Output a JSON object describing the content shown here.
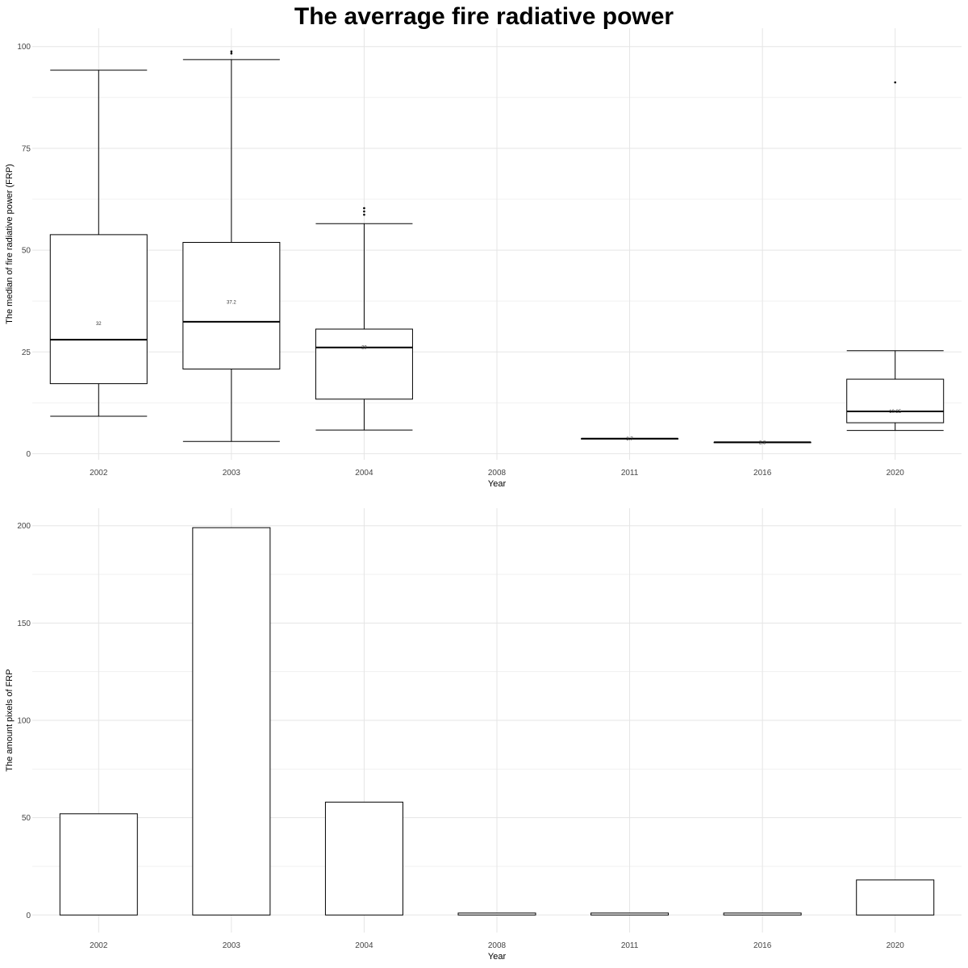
{
  "title": "The averrage fire radiative power",
  "chart_data": [
    {
      "type": "box",
      "title": "The averrage fire radiative power",
      "xlabel": "Year",
      "ylabel": "The median of fire radiative power (FRP)",
      "categories": [
        "2002",
        "2003",
        "2004",
        "2008",
        "2011",
        "2016",
        "2020"
      ],
      "ylim": [
        -1.5,
        104.5
      ],
      "yticks": [
        0,
        25,
        50,
        75,
        100
      ],
      "grid": true,
      "boxes": [
        {
          "category": "2002",
          "whisker_low": 9.2,
          "q1": 17.2,
          "median": 28.0,
          "q3": 53.8,
          "whisker_high": 94.2,
          "outliers": [],
          "label": "32",
          "label_y": 31.6
        },
        {
          "category": "2003",
          "whisker_low": 3.0,
          "q1": 20.8,
          "median": 32.4,
          "q3": 51.9,
          "whisker_high": 96.8,
          "outliers": [
            98.3,
            98.8
          ],
          "label": "37.2",
          "label_y": 36.8
        },
        {
          "category": "2004",
          "whisker_low": 5.8,
          "q1": 13.4,
          "median": 26.1,
          "q3": 30.6,
          "whisker_high": 56.5,
          "outliers": [
            58.7,
            59.5,
            60.3
          ],
          "label": "28",
          "label_y": 25.7
        },
        {
          "category": "2008",
          "empty": true
        },
        {
          "category": "2011",
          "whisker_low": 3.7,
          "q1": 3.7,
          "median": 3.7,
          "q3": 3.7,
          "whisker_high": 3.7,
          "outliers": [],
          "label": "3.7",
          "label_y": 3.3
        },
        {
          "category": "2016",
          "whisker_low": 2.8,
          "q1": 2.8,
          "median": 2.8,
          "q3": 2.8,
          "whisker_high": 2.8,
          "outliers": [],
          "label": "2.8",
          "label_y": 2.4
        },
        {
          "category": "2020",
          "whisker_low": 5.7,
          "q1": 7.6,
          "median": 10.4,
          "q3": 18.3,
          "whisker_high": 25.3,
          "outliers": [
            91.2
          ],
          "label": "10.35",
          "label_y": 10.0
        }
      ]
    },
    {
      "type": "bar",
      "xlabel": "Year",
      "ylabel": "The amount pixels of FRP",
      "categories": [
        "2002",
        "2003",
        "2004",
        "2008",
        "2011",
        "2016",
        "2020"
      ],
      "values": [
        52,
        199,
        58,
        1,
        1,
        1,
        18
      ],
      "ylim": [
        -9,
        209
      ],
      "yticks": [
        0,
        50,
        100,
        150,
        200
      ],
      "grid": true
    }
  ]
}
